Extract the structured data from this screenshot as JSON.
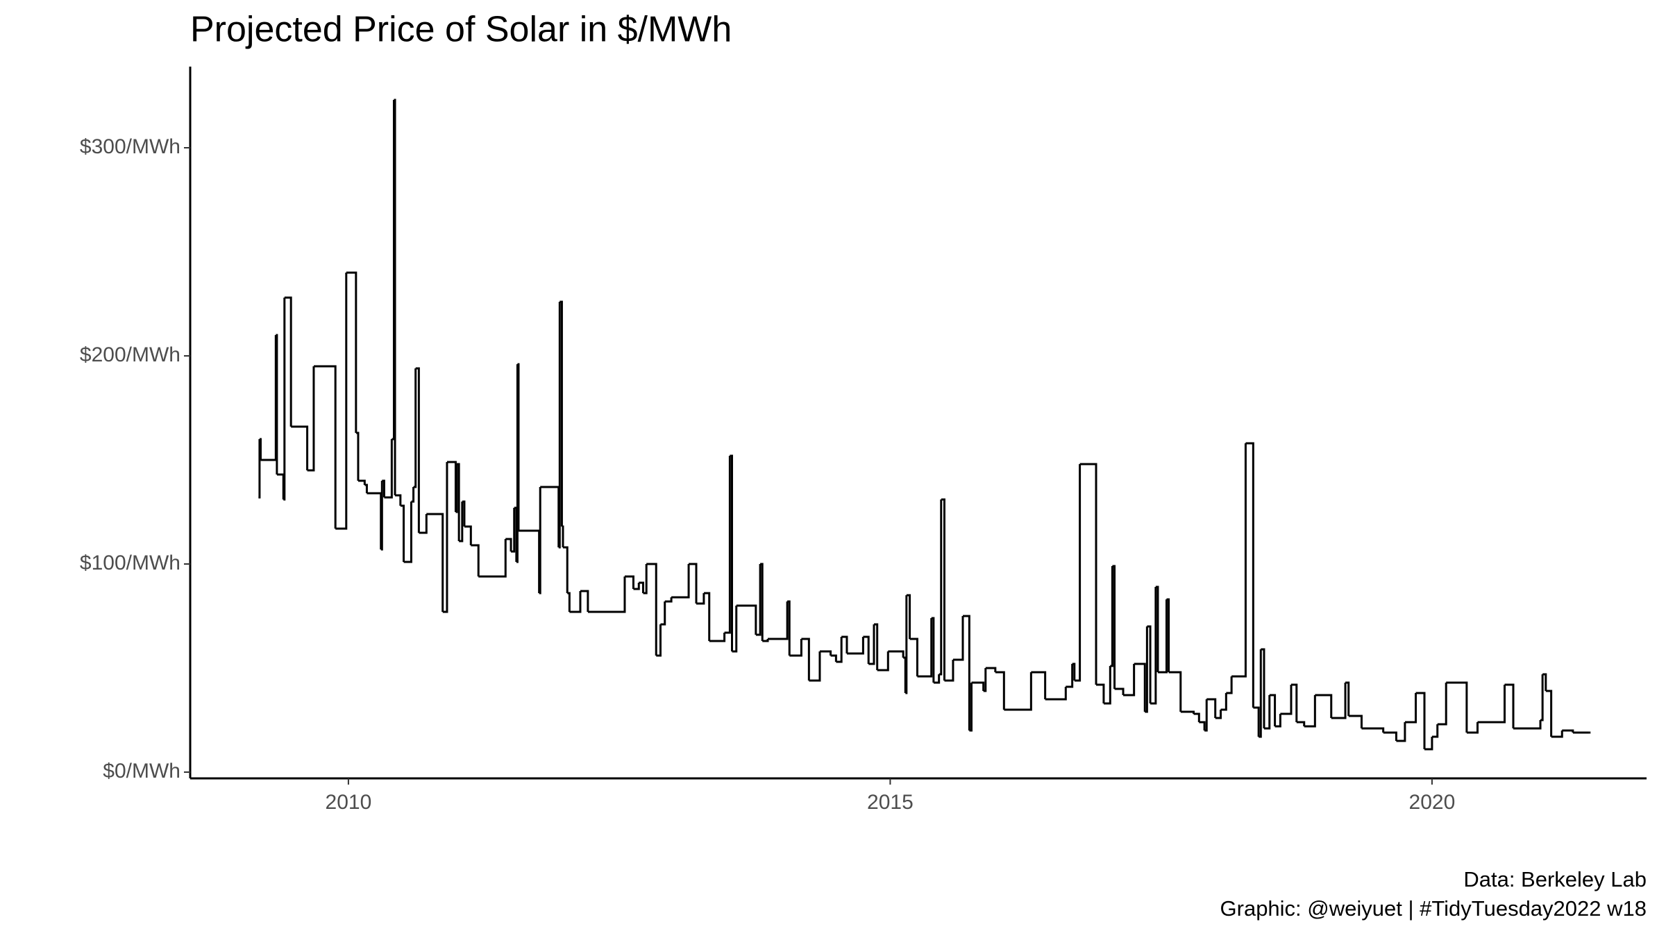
{
  "chart_data": {
    "type": "step",
    "title": "Projected Price of Solar in $/MWh",
    "caption": [
      "Data: Berkeley Lab",
      "Graphic: @weiyuet | #TidyTuesday2022 w18"
    ],
    "color": "#000000",
    "xlim": [
      2008.54,
      2021.98
    ],
    "xticks": [
      2010,
      2015,
      2020
    ],
    "ylim": [
      -3,
      339
    ],
    "yticks": [
      {
        "value": 0,
        "label": "$0/MWh"
      },
      {
        "value": 100,
        "label": "$100/MWh"
      },
      {
        "value": 200,
        "label": "$200/MWh"
      },
      {
        "value": 300,
        "label": "$300/MWh"
      }
    ],
    "x": [
      2009.17,
      2009.18,
      2009.19,
      2009.33,
      2009.34,
      2009.4,
      2009.41,
      2009.47,
      2009.62,
      2009.68,
      2009.88,
      2009.98,
      2010.07,
      2010.09,
      2010.15,
      2010.17,
      2010.3,
      2010.31,
      2010.33,
      2010.4,
      2010.42,
      2010.43,
      2010.48,
      2010.51,
      2010.58,
      2010.6,
      2010.62,
      2010.65,
      2010.72,
      2010.87,
      2010.91,
      2010.99,
      2011.0,
      2011.02,
      2011.05,
      2011.07,
      2011.13,
      2011.2,
      2011.45,
      2011.5,
      2011.53,
      2011.55,
      2011.56,
      2011.57,
      2011.76,
      2011.77,
      2011.94,
      2011.95,
      2011.97,
      2011.98,
      2012.02,
      2012.04,
      2012.14,
      2012.21,
      2012.55,
      2012.63,
      2012.68,
      2012.72,
      2012.75,
      2012.84,
      2012.88,
      2012.92,
      2012.98,
      2013.14,
      2013.21,
      2013.28,
      2013.33,
      2013.47,
      2013.52,
      2013.54,
      2013.58,
      2013.76,
      2013.8,
      2013.82,
      2013.87,
      2014.05,
      2014.07,
      2014.18,
      2014.25,
      2014.35,
      2014.45,
      2014.5,
      2014.55,
      2014.6,
      2014.75,
      2014.8,
      2014.85,
      2014.88,
      2014.98,
      2015.12,
      2015.14,
      2015.15,
      2015.18,
      2015.25,
      2015.38,
      2015.4,
      2015.45,
      2015.47,
      2015.5,
      2015.58,
      2015.67,
      2015.73,
      2015.75,
      2015.86,
      2015.88,
      2015.97,
      2016.05,
      2016.3,
      2016.43,
      2016.62,
      2016.68,
      2016.7,
      2016.75,
      2016.9,
      2016.97,
      2017.03,
      2017.05,
      2017.07,
      2017.15,
      2017.25,
      2017.35,
      2017.37,
      2017.4,
      2017.45,
      2017.47,
      2017.55,
      2017.57,
      2017.68,
      2017.8,
      2017.85,
      2017.9,
      2017.92,
      2018.0,
      2018.05,
      2018.1,
      2018.15,
      2018.28,
      2018.35,
      2018.4,
      2018.42,
      2018.45,
      2018.5,
      2018.55,
      2018.6,
      2018.7,
      2018.75,
      2018.82,
      2018.92,
      2019.07,
      2019.2,
      2019.23,
      2019.35,
      2019.55,
      2019.67,
      2019.75,
      2019.85,
      2019.93,
      2020.0,
      2020.05,
      2020.13,
      2020.32,
      2020.42,
      2020.67,
      2020.75,
      2021.0,
      2021.02,
      2021.05,
      2021.1,
      2021.2,
      2021.3,
      2021.45
    ],
    "values": [
      132,
      160,
      150,
      210,
      143,
      131,
      228,
      166,
      145,
      195,
      117,
      240,
      163,
      140,
      138,
      134,
      107,
      140,
      132,
      160,
      323,
      133,
      128,
      101,
      130,
      137,
      194,
      115,
      124,
      77,
      149,
      125,
      148,
      111,
      130,
      118,
      109,
      94,
      112,
      106,
      127,
      101,
      196,
      116,
      86,
      137,
      108,
      226,
      118,
      108,
      86,
      77,
      87,
      77,
      94,
      88,
      91,
      86,
      100,
      56,
      71,
      82,
      84,
      100,
      81,
      86,
      63,
      67,
      152,
      58,
      80,
      66,
      100,
      63,
      64,
      82,
      56,
      64,
      44,
      58,
      56,
      53,
      65,
      57,
      65,
      52,
      71,
      49,
      58,
      55,
      38,
      85,
      64,
      46,
      74,
      43,
      47,
      131,
      44,
      54,
      75,
      20,
      43,
      39,
      50,
      48,
      30,
      48,
      35,
      41,
      52,
      44,
      148,
      42,
      33,
      51,
      99,
      40,
      37,
      52,
      29,
      70,
      33,
      89,
      48,
      83,
      48,
      29,
      28,
      24,
      20,
      35,
      26,
      30,
      38,
      46,
      158,
      31,
      17,
      59,
      21,
      37,
      22,
      28,
      42,
      24,
      22,
      37,
      26,
      43,
      27,
      21,
      19,
      15,
      24,
      38,
      11,
      17,
      23,
      43,
      19,
      24,
      42,
      21,
      25,
      47,
      39,
      17,
      20,
      19,
      19
    ]
  }
}
